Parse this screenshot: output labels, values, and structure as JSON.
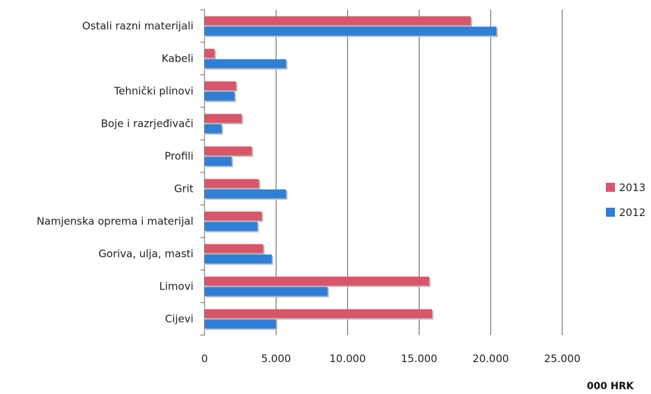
{
  "chart_data": {
    "type": "bar",
    "orientation": "horizontal",
    "categories": [
      "Ostali razni materijali",
      "Kabeli",
      "Tehnički plinovi",
      "Boje i razrjeđivači",
      "Profili",
      "Grit",
      "Namjenska oprema i materijal",
      "Goriva, ulja, masti",
      "Limovi",
      "Cijevi"
    ],
    "series": [
      {
        "name": "2013",
        "color": "#d9566a",
        "values": [
          18600,
          700,
          2200,
          2600,
          3300,
          3800,
          4000,
          4100,
          15700,
          15900
        ]
      },
      {
        "name": "2012",
        "color": "#2f7fd6",
        "values": [
          20400,
          5700,
          2100,
          1200,
          1900,
          5700,
          3700,
          4700,
          8600,
          5000
        ]
      }
    ],
    "xlim": [
      0,
      25000
    ],
    "xticks": [
      0,
      5000,
      10000,
      15000,
      20000,
      25000
    ],
    "xtick_labels": [
      "0",
      "5.000",
      "10.000",
      "15.000",
      "20.000",
      "25.000"
    ],
    "unit_label": "000 HRK",
    "grid": true,
    "legend_position": "right"
  }
}
